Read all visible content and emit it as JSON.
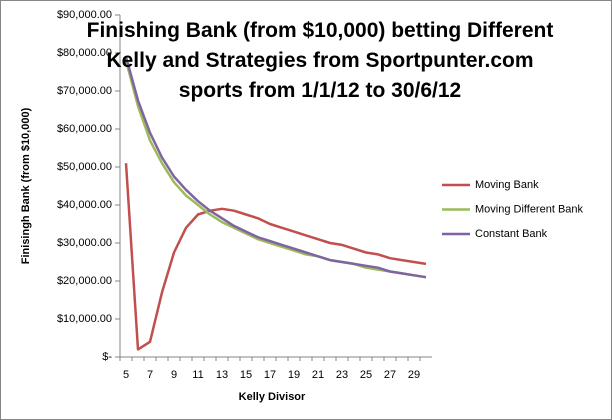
{
  "chart_data": {
    "type": "line",
    "title": "Finishing Bank (from $10,000) betting Different Kelly and Strategies from Sportpunter.com sports from 1/1/12 to 30/6/12",
    "x_label": "Kelly Divisor",
    "y_label": "Finisingh Bank (from $10,000)",
    "categories": [
      "5",
      null,
      "7",
      null,
      "9",
      null,
      "11",
      null,
      "13",
      null,
      "15",
      null,
      "17",
      null,
      "19",
      null,
      "21",
      null,
      "23",
      null,
      "25",
      null,
      "27",
      null,
      "29",
      null
    ],
    "series": [
      {
        "name": "Moving Bank",
        "color": "#c0504d",
        "values": [
          51000,
          2000,
          4000,
          17000,
          27500,
          34000,
          37500,
          38500,
          39000,
          38500,
          37500,
          36500,
          35000,
          34000,
          33000,
          32000,
          31000,
          30000,
          29500,
          28500,
          27500,
          27000,
          26000,
          25500,
          25000,
          24500
        ]
      },
      {
        "name": "Moving Different Bank",
        "color": "#9bbb59",
        "values": [
          78000,
          66000,
          57000,
          51000,
          46000,
          42500,
          40000,
          37500,
          35500,
          34000,
          32500,
          31000,
          30000,
          29000,
          28000,
          27000,
          26500,
          25500,
          25000,
          24500,
          23500,
          23000,
          22500,
          22000,
          21500,
          21000
        ]
      },
      {
        "name": "Constant Bank",
        "color": "#8064a2",
        "values": [
          79000,
          67500,
          59000,
          52500,
          47500,
          44000,
          41000,
          38500,
          36500,
          34500,
          33000,
          31500,
          30500,
          29500,
          28500,
          27500,
          26500,
          25500,
          25000,
          24500,
          24000,
          23500,
          22500,
          22000,
          21500,
          21000
        ]
      }
    ],
    "ylim": [
      0,
      90000
    ],
    "yticks": [
      {
        "value": 0,
        "label": "$-"
      },
      {
        "value": 10000,
        "label": "$10,000.00"
      },
      {
        "value": 20000,
        "label": "$20,000.00"
      },
      {
        "value": 30000,
        "label": "$30,000.00"
      },
      {
        "value": 40000,
        "label": "$40,000.00"
      },
      {
        "value": 50000,
        "label": "$50,000.00"
      },
      {
        "value": 60000,
        "label": "$60,000.00"
      },
      {
        "value": 70000,
        "label": "$70,000.00"
      },
      {
        "value": 80000,
        "label": "$80,000.00"
      },
      {
        "value": 90000,
        "label": "$90,000.00"
      }
    ],
    "grid": false,
    "legend": "right"
  }
}
